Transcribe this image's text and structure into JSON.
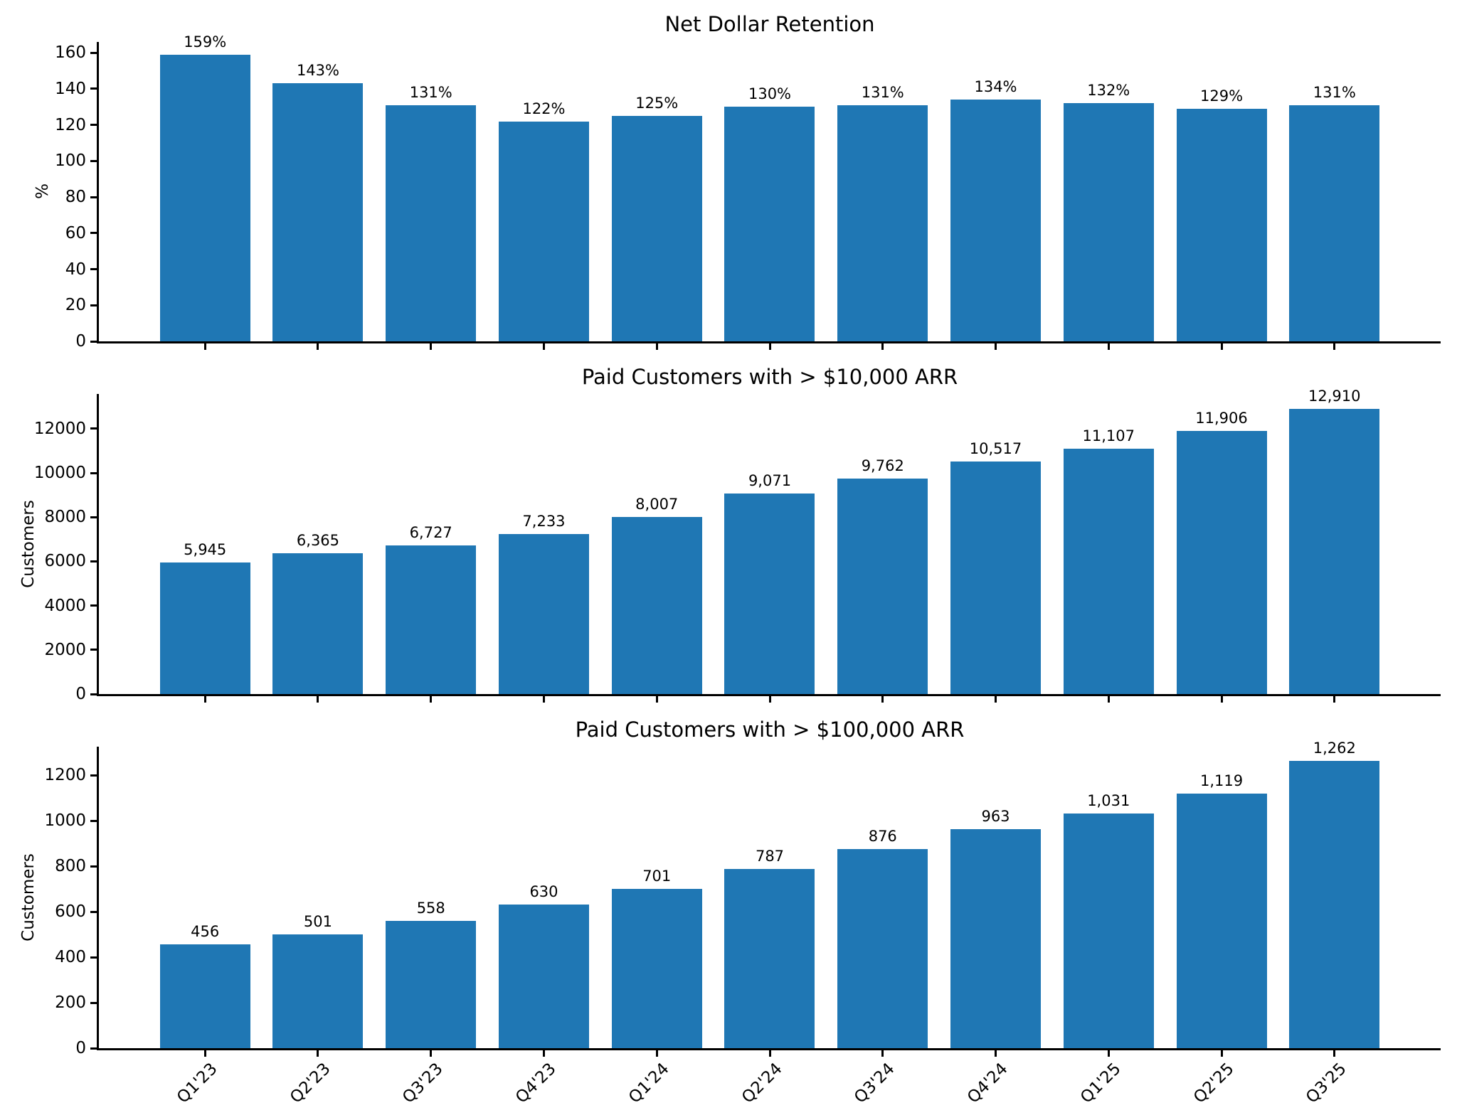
{
  "figure": {
    "background": "#ffffff",
    "text_color": "#000000"
  },
  "chart_data": [
    {
      "type": "bar",
      "title": "Net Dollar Retention",
      "ylabel": "%",
      "categories": [
        "Q1'23",
        "Q2'23",
        "Q3'23",
        "Q4'23",
        "Q1'24",
        "Q2'24",
        "Q3'24",
        "Q4'24",
        "Q1'25",
        "Q2'25",
        "Q3'25"
      ],
      "values": [
        159,
        143,
        131,
        122,
        125,
        130,
        131,
        134,
        132,
        129,
        131
      ],
      "labels": [
        "159%",
        "143%",
        "131%",
        "122%",
        "125%",
        "130%",
        "131%",
        "134%",
        "132%",
        "129%",
        "131%"
      ],
      "yticks": [
        0,
        20,
        40,
        60,
        80,
        100,
        120,
        140,
        160
      ],
      "ylim": [
        0,
        166
      ],
      "bar_color": "#1f77b4",
      "grid": false,
      "show_x_tick_labels": false
    },
    {
      "type": "bar",
      "title": "Paid Customers with > $10,000 ARR",
      "ylabel": "Customers",
      "categories": [
        "Q1'23",
        "Q2'23",
        "Q3'23",
        "Q4'23",
        "Q1'24",
        "Q2'24",
        "Q3'24",
        "Q4'24",
        "Q1'25",
        "Q2'25",
        "Q3'25"
      ],
      "values": [
        5945,
        6365,
        6727,
        7233,
        8007,
        9071,
        9762,
        10517,
        11107,
        11906,
        12910
      ],
      "labels": [
        "5,945",
        "6,365",
        "6,727",
        "7,233",
        "8,007",
        "9,071",
        "9,762",
        "10,517",
        "11,107",
        "11,906",
        "12,910"
      ],
      "yticks": [
        0,
        2000,
        4000,
        6000,
        8000,
        10000,
        12000
      ],
      "ylim": [
        0,
        13575
      ],
      "bar_color": "#1f77b4",
      "grid": false,
      "show_x_tick_labels": false
    },
    {
      "type": "bar",
      "title": "Paid Customers with > $100,000 ARR",
      "ylabel": "Customers",
      "categories": [
        "Q1'23",
        "Q2'23",
        "Q3'23",
        "Q4'23",
        "Q1'24",
        "Q2'24",
        "Q3'24",
        "Q4'24",
        "Q1'25",
        "Q2'25",
        "Q3'25"
      ],
      "values": [
        456,
        501,
        558,
        630,
        701,
        787,
        876,
        963,
        1031,
        1119,
        1262
      ],
      "labels": [
        "456",
        "501",
        "558",
        "630",
        "701",
        "787",
        "876",
        "963",
        "1,031",
        "1,119",
        "1,262"
      ],
      "yticks": [
        0,
        200,
        400,
        600,
        800,
        1000,
        1200
      ],
      "ylim": [
        0,
        1325
      ],
      "bar_color": "#1f77b4",
      "grid": false,
      "show_x_tick_labels": true
    }
  ]
}
